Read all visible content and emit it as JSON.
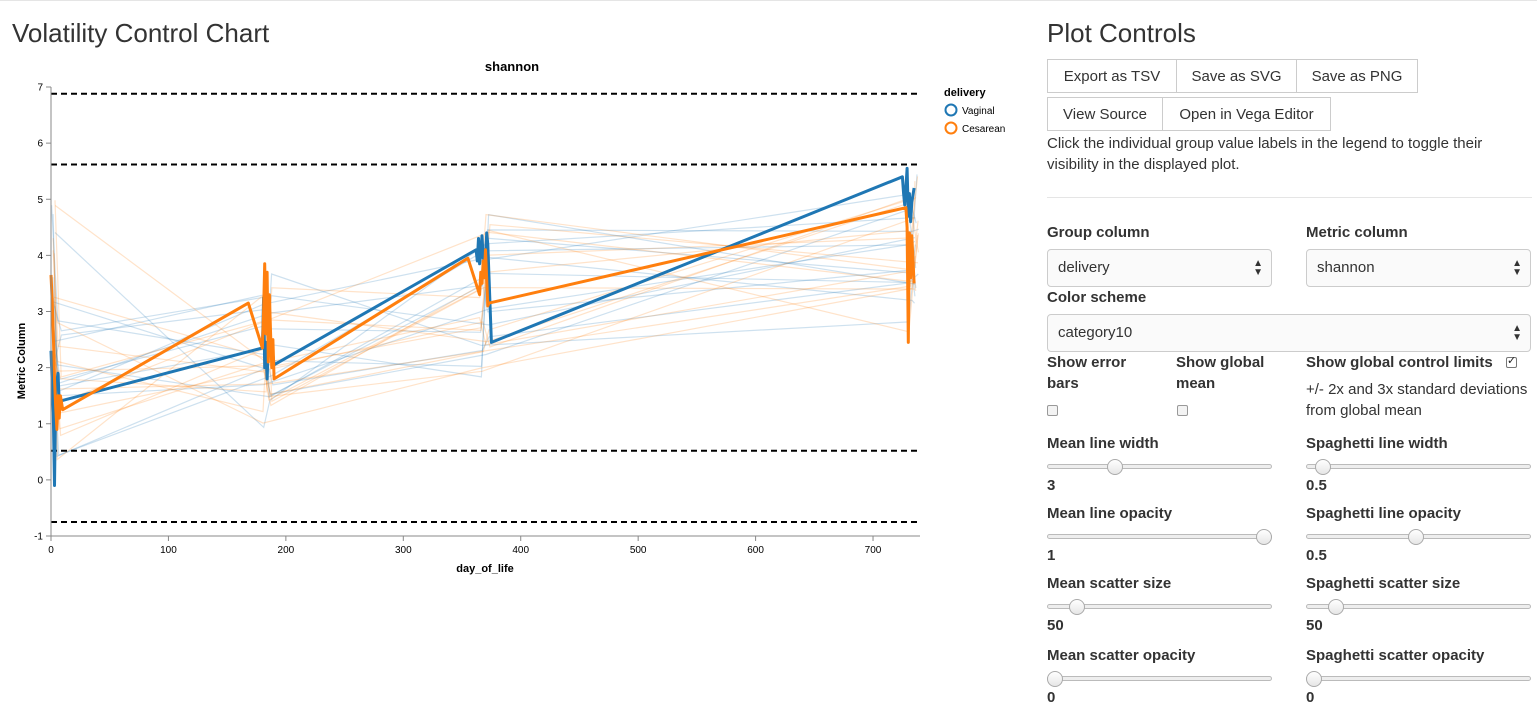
{
  "page": {
    "title": "Volatility Control Chart"
  },
  "chart_data": {
    "type": "line",
    "title": "shannon",
    "xlabel": "day_of_life",
    "ylabel": "Metric Column",
    "xlim": [
      0,
      740
    ],
    "ylim": [
      -1,
      7
    ],
    "x_ticks": [
      0,
      100,
      200,
      300,
      400,
      500,
      600,
      700
    ],
    "y_ticks": [
      -1,
      0,
      1,
      2,
      3,
      4,
      5,
      6,
      7
    ],
    "grid": false,
    "legend": {
      "title": "delivery",
      "position": "top-right"
    },
    "control_limits": [
      6.88,
      5.62,
      0.52,
      -0.75
    ],
    "series": [
      {
        "name": "Vaginal",
        "color": "#1f77b4",
        "x": [
          0,
          2,
          3,
          4,
          6,
          7,
          180,
          181,
          182,
          183,
          184,
          185,
          186,
          188,
          190,
          362,
          363,
          364,
          365,
          366,
          367,
          368,
          369,
          370,
          371,
          372,
          375,
          725,
          726,
          727,
          728,
          729,
          730,
          731,
          732,
          733,
          735
        ],
        "y": [
          2.3,
          1.2,
          -0.1,
          1.6,
          1.9,
          1.4,
          2.35,
          3.25,
          2.0,
          2.45,
          1.8,
          2.4,
          2.3,
          2.4,
          2.05,
          4.1,
          3.9,
          4.3,
          3.85,
          4.05,
          4.35,
          3.95,
          4.1,
          3.9,
          4.4,
          4.2,
          2.45,
          5.4,
          5.1,
          4.9,
          5.2,
          5.55,
          4.7,
          5.1,
          4.6,
          4.95,
          5.2
        ]
      },
      {
        "name": "Cesarean",
        "color": "#ff7f0e",
        "x": [
          0,
          1,
          2,
          3,
          4,
          5,
          6,
          7,
          8,
          10,
          168,
          180,
          181,
          182,
          183,
          184,
          185,
          186,
          187,
          188,
          189,
          190,
          355,
          365,
          366,
          367,
          368,
          369,
          370,
          372,
          373,
          728,
          729,
          730,
          731,
          732,
          733,
          734,
          735
        ],
        "y": [
          3.65,
          3.2,
          2.6,
          1.8,
          1.3,
          0.9,
          1.5,
          1.1,
          1.5,
          1.25,
          3.15,
          2.35,
          3.0,
          3.85,
          2.6,
          3.7,
          2.1,
          3.3,
          2.6,
          2.0,
          2.5,
          1.8,
          3.95,
          3.3,
          3.7,
          3.5,
          3.9,
          3.6,
          4.1,
          3.1,
          3.15,
          4.85,
          4.5,
          2.45,
          4.4,
          3.6,
          4.35,
          3.9,
          3.5
        ]
      }
    ]
  },
  "controls": {
    "title": "Plot Controls",
    "buttons": {
      "export_tsv": "Export as TSV",
      "save_svg": "Save as SVG",
      "save_png": "Save as PNG",
      "view_source": "View Source",
      "open_vega": "Open in Vega Editor"
    },
    "help": "Click the individual group value labels in the legend to toggle their visibility in the displayed plot.",
    "group_column": {
      "label": "Group column",
      "value": "delivery"
    },
    "metric_column": {
      "label": "Metric column",
      "value": "shannon"
    },
    "color_scheme": {
      "label": "Color scheme",
      "value": "category10"
    },
    "show_error_bars": {
      "label": "Show error bars",
      "checked": false
    },
    "show_global_mean": {
      "label": "Show global mean",
      "checked": false
    },
    "show_control_limits": {
      "label": "Show global control limits",
      "checked": true,
      "note": "+/- 2x and 3x standard deviations from global mean"
    },
    "sliders": {
      "mean_line_width": {
        "label": "Mean line width",
        "value": "3",
        "fraction": 0.3
      },
      "spaghetti_line_width": {
        "label": "Spaghetti line width",
        "value": "0.5",
        "fraction": 0.07
      },
      "mean_line_opacity": {
        "label": "Mean line opacity",
        "value": "1",
        "fraction": 0.97
      },
      "spaghetti_line_opacity": {
        "label": "Spaghetti line opacity",
        "value": "0.5",
        "fraction": 0.49
      },
      "mean_scatter_size": {
        "label": "Mean scatter size",
        "value": "50",
        "fraction": 0.13
      },
      "spaghetti_scatter_size": {
        "label": "Spaghetti scatter size",
        "value": "50",
        "fraction": 0.13
      },
      "mean_scatter_opacity": {
        "label": "Mean scatter opacity",
        "value": "0",
        "fraction": 0.03
      },
      "spaghetti_scatter_opacity": {
        "label": "Spaghetti scatter opacity",
        "value": "0",
        "fraction": 0.03
      }
    }
  }
}
